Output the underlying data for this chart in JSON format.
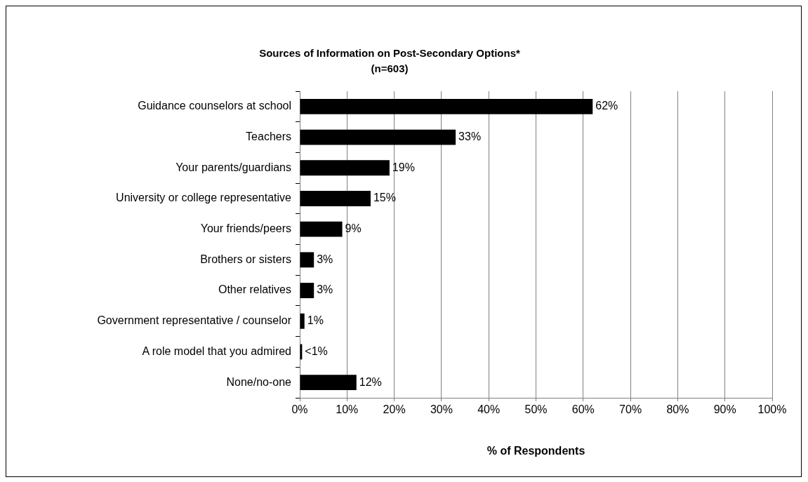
{
  "chart_data": {
    "type": "bar",
    "orientation": "horizontal",
    "title": "Sources of Information on Post-Secondary Options*",
    "subtitle": "(n=603)",
    "xlabel": "% of Respondents",
    "categories": [
      "Guidance counselors at school",
      "Teachers",
      "Your parents/guardians",
      "University or college representative",
      "Your friends/peers",
      "Brothers or sisters",
      "Other relatives",
      "Government representative / counselor",
      "A role model that you admired",
      "None/no-one"
    ],
    "values": [
      62,
      33,
      19,
      15,
      9,
      3,
      3,
      1,
      0.5,
      12
    ],
    "value_labels": [
      "62%",
      "33%",
      "19%",
      "15%",
      "9%",
      "3%",
      "3%",
      "1%",
      "<1%",
      "12%"
    ],
    "color": "#000000",
    "xlim": [
      0,
      100
    ],
    "xticks": [
      {
        "value": 0,
        "label": "0%"
      },
      {
        "value": 10,
        "label": "10%"
      },
      {
        "value": 20,
        "label": "20%"
      },
      {
        "value": 30,
        "label": "30%"
      },
      {
        "value": 40,
        "label": "40%"
      },
      {
        "value": 50,
        "label": "50%"
      },
      {
        "value": 60,
        "label": "60%"
      },
      {
        "value": 70,
        "label": "70%"
      },
      {
        "value": 80,
        "label": "80%"
      },
      {
        "value": 90,
        "label": "90%"
      },
      {
        "value": 100,
        "label": "100%"
      }
    ],
    "grid": "x",
    "legend": false
  }
}
